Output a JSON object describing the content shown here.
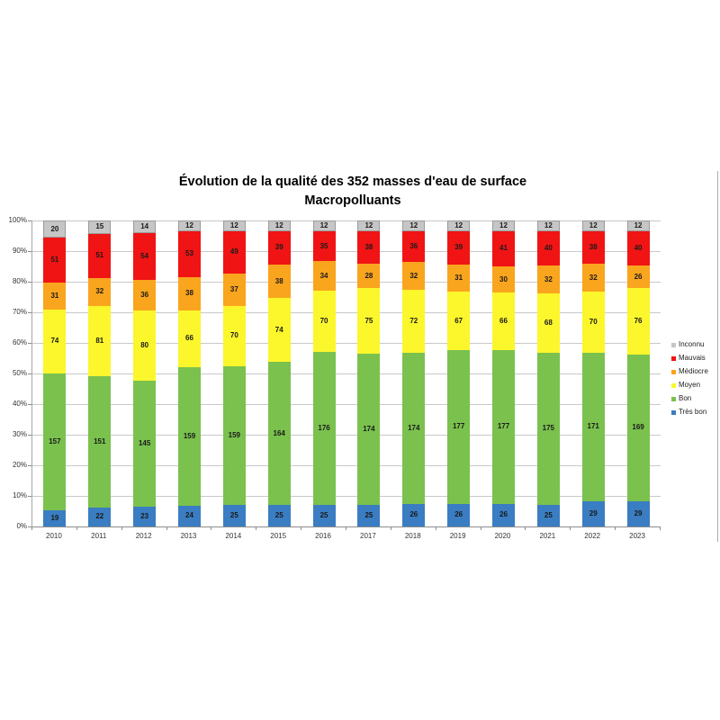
{
  "chart_data": {
    "type": "bar",
    "stacked": true,
    "title": "Évolution de la qualité des 352 masses d'eau de surface",
    "subtitle": "Macropolluants",
    "total_per_year": 352,
    "categories": [
      "2010",
      "2011",
      "2012",
      "2013",
      "2014",
      "2015",
      "2016",
      "2017",
      "2018",
      "2019",
      "2020",
      "2021",
      "2022",
      "2023"
    ],
    "series": [
      {
        "name": "Très bon",
        "color": "#3a7dc2",
        "values": [
          19,
          22,
          23,
          24,
          25,
          25,
          25,
          25,
          26,
          26,
          26,
          25,
          29,
          29
        ]
      },
      {
        "name": "Bon",
        "color": "#7ac14e",
        "values": [
          157,
          151,
          145,
          159,
          159,
          164,
          176,
          174,
          174,
          177,
          177,
          175,
          171,
          169
        ]
      },
      {
        "name": "Moyen",
        "color": "#fcf62c",
        "values": [
          74,
          81,
          80,
          66,
          70,
          74,
          70,
          75,
          72,
          67,
          66,
          68,
          70,
          76
        ]
      },
      {
        "name": "Médiocre",
        "color": "#faa51e",
        "values": [
          31,
          32,
          36,
          38,
          37,
          38,
          34,
          28,
          32,
          31,
          30,
          32,
          32,
          26
        ]
      },
      {
        "name": "Mauvais",
        "color": "#f01414",
        "values": [
          51,
          51,
          54,
          53,
          49,
          39,
          35,
          38,
          36,
          39,
          41,
          40,
          38,
          40
        ]
      },
      {
        "name": "Inconnu",
        "color": "#c6c6c6",
        "border": "#9b9b9b",
        "values": [
          20,
          15,
          14,
          12,
          12,
          12,
          12,
          12,
          12,
          12,
          12,
          12,
          12,
          12
        ]
      }
    ],
    "legend": [
      {
        "label": "Inconnu",
        "color": "#c6c6c6"
      },
      {
        "label": "Mauvais",
        "color": "#f01414"
      },
      {
        "label": "Médiocre",
        "color": "#faa51e"
      },
      {
        "label": "Moyen",
        "color": "#fcf62c"
      },
      {
        "label": "Bon",
        "color": "#7ac14e"
      },
      {
        "label": "Très bon",
        "color": "#3a7dc2"
      }
    ],
    "legend_position": "right",
    "y_axis": {
      "min": 0,
      "max": 100,
      "unit": "%",
      "ticks": [
        "0%",
        "10%",
        "20%",
        "30%",
        "40%",
        "50%",
        "60%",
        "70%",
        "80%",
        "90%",
        "100%"
      ],
      "grid": true
    },
    "x_axis": {
      "label": ""
    }
  }
}
